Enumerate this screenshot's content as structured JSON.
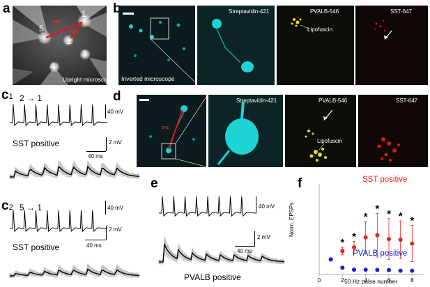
{
  "panels": {
    "a": {
      "label": "a",
      "cells": [
        "1",
        "2",
        "3",
        "4",
        "5"
      ],
      "arrow_labels": [
        "exc",
        "exc"
      ],
      "caption": "Upright microscope"
    },
    "b": {
      "label": "b",
      "caption": "Inverted microscope",
      "channels": [
        "Streptavidin-421",
        "PVALB-546",
        "SST-647"
      ],
      "annotation": "Lipofuscin"
    },
    "c1": {
      "label_main": "c",
      "label_sub": "1",
      "pair": "2",
      "pair_target": "1",
      "vscale": "40 mV",
      "group": "SST positive",
      "epsp_scale": "2 mV",
      "time_scale": "40 ms"
    },
    "c2": {
      "label_main": "c",
      "label_sub": "2",
      "pair": "5",
      "pair_target": "1",
      "vscale": "40 mV",
      "group": "SST positive",
      "epsp_scale": "2 mV",
      "time_scale": "40 ms"
    },
    "d": {
      "label": "d",
      "arrow_label": "exc",
      "channels": [
        "Streptavidin-421",
        "PVALB-546",
        "SST-647"
      ],
      "annotation": "Lipofuscin"
    },
    "e": {
      "label": "e",
      "vscale": "40 mV",
      "epsp_scale": "2 mV",
      "time_scale": "40 ms",
      "group": "PVALB positive"
    },
    "f": {
      "label": "f",
      "ylabel": "Norm. EPSPs",
      "xlabel": "50 Hz pulse number",
      "series_labels": [
        "SST positive",
        "PVALB positive"
      ]
    }
  },
  "colors": {
    "sst": "#e8231b",
    "pvalb": "#1a1adb",
    "cyan": "#1ed3d3",
    "yellow": "#e8e01a",
    "red_ch": "#e0151b",
    "trace_gray": "#bdbdbd"
  },
  "chart_data": {
    "type": "scatter",
    "x": [
      1,
      2,
      3,
      4,
      5,
      6,
      7,
      8
    ],
    "xlim": [
      0,
      9
    ],
    "ylim": [
      0,
      6
    ],
    "xticks": [
      0,
      2,
      4,
      6,
      8
    ],
    "xlabel": "50 Hz pulse number",
    "ylabel": "Norm. EPSPs",
    "series": [
      {
        "name": "SST positive",
        "color": "#e8231b",
        "values": [
          1.0,
          1.55,
          1.8,
          2.45,
          2.6,
          2.35,
          2.3,
          2.05
        ],
        "error": [
          0,
          0.25,
          0.4,
          1.05,
          1.45,
          1.35,
          1.25,
          1.2
        ],
        "significant": [
          false,
          true,
          true,
          true,
          true,
          true,
          true,
          true
        ],
        "marker": "*"
      },
      {
        "name": "PVALB positive",
        "color": "#1a1adb",
        "values": [
          1.0,
          0.45,
          0.32,
          0.32,
          0.3,
          0.29,
          0.25,
          0.25
        ],
        "error": [
          0,
          0,
          0,
          0,
          0,
          0,
          0,
          0
        ]
      }
    ]
  }
}
